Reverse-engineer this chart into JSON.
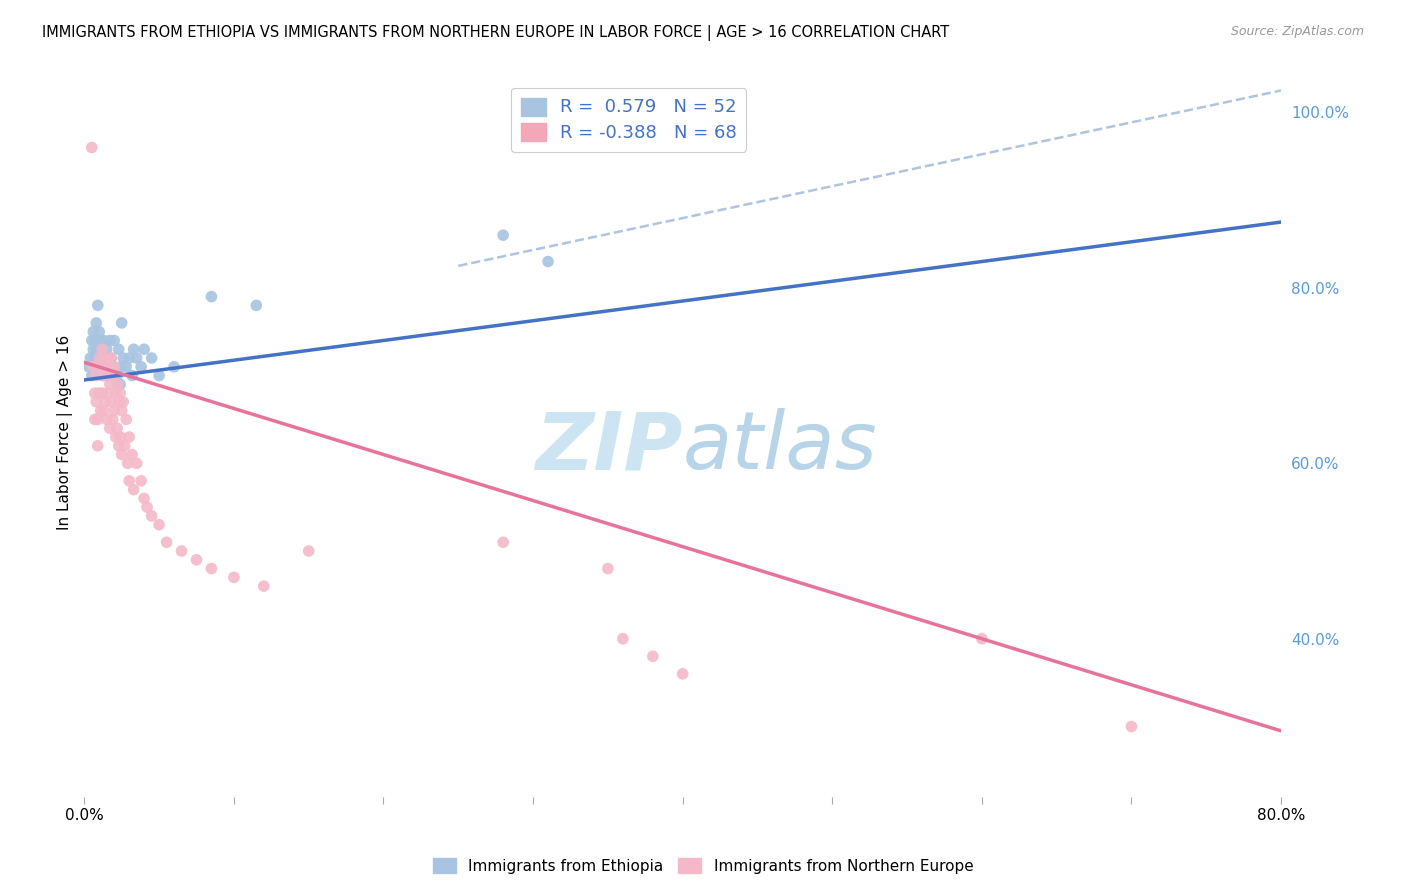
{
  "title": "IMMIGRANTS FROM ETHIOPIA VS IMMIGRANTS FROM NORTHERN EUROPE IN LABOR FORCE | AGE > 16 CORRELATION CHART",
  "source": "Source: ZipAtlas.com",
  "ylabel": "In Labor Force | Age > 16",
  "xlim": [
    0.0,
    0.8
  ],
  "ylim": [
    0.22,
    1.05
  ],
  "right_yticklabels": [
    "100.0%",
    "80.0%",
    "60.0%",
    "40.0%"
  ],
  "right_yticks": [
    1.0,
    0.8,
    0.6,
    0.4
  ],
  "legend_color1": "#a8c4e0",
  "legend_color2": "#f4a7b9",
  "scatter_color_blue": "#a8c4e0",
  "scatter_color_pink": "#f4b8c8",
  "line_color_blue": "#4472c4",
  "line_color_pink": "#e8739a",
  "line_color_dashed": "#b0c4de",
  "watermark_color": "#d8eaf5",
  "ethiopia_trend_x": [
    0.0,
    0.8
  ],
  "ethiopia_trend_y": [
    0.695,
    0.875
  ],
  "northern_trend_x": [
    0.0,
    0.8
  ],
  "northern_trend_y": [
    0.715,
    0.295
  ],
  "dashed_trend_x": [
    0.25,
    0.8
  ],
  "dashed_trend_y": [
    0.825,
    1.025
  ],
  "bottom_legend_labels": [
    "Immigrants from Ethiopia",
    "Immigrants from Northern Europe"
  ],
  "bottom_legend_colors": [
    "#a8c4e0",
    "#f4b8c8"
  ],
  "ethiopia_points": [
    [
      0.003,
      0.71
    ],
    [
      0.004,
      0.72
    ],
    [
      0.005,
      0.7
    ],
    [
      0.005,
      0.74
    ],
    [
      0.006,
      0.73
    ],
    [
      0.006,
      0.75
    ],
    [
      0.007,
      0.72
    ],
    [
      0.007,
      0.74
    ],
    [
      0.008,
      0.71
    ],
    [
      0.008,
      0.73
    ],
    [
      0.008,
      0.76
    ],
    [
      0.009,
      0.72
    ],
    [
      0.009,
      0.74
    ],
    [
      0.009,
      0.78
    ],
    [
      0.01,
      0.71
    ],
    [
      0.01,
      0.73
    ],
    [
      0.01,
      0.75
    ],
    [
      0.011,
      0.72
    ],
    [
      0.011,
      0.74
    ],
    [
      0.012,
      0.7
    ],
    [
      0.012,
      0.73
    ],
    [
      0.013,
      0.71
    ],
    [
      0.013,
      0.74
    ],
    [
      0.014,
      0.72
    ],
    [
      0.015,
      0.7
    ],
    [
      0.015,
      0.73
    ],
    [
      0.016,
      0.71
    ],
    [
      0.017,
      0.74
    ],
    [
      0.018,
      0.72
    ],
    [
      0.019,
      0.7
    ],
    [
      0.02,
      0.71
    ],
    [
      0.02,
      0.74
    ],
    [
      0.022,
      0.7
    ],
    [
      0.023,
      0.73
    ],
    [
      0.024,
      0.69
    ],
    [
      0.025,
      0.71
    ],
    [
      0.025,
      0.76
    ],
    [
      0.026,
      0.72
    ],
    [
      0.028,
      0.71
    ],
    [
      0.03,
      0.72
    ],
    [
      0.032,
      0.7
    ],
    [
      0.033,
      0.73
    ],
    [
      0.035,
      0.72
    ],
    [
      0.038,
      0.71
    ],
    [
      0.04,
      0.73
    ],
    [
      0.045,
      0.72
    ],
    [
      0.05,
      0.7
    ],
    [
      0.06,
      0.71
    ],
    [
      0.085,
      0.79
    ],
    [
      0.115,
      0.78
    ],
    [
      0.28,
      0.86
    ],
    [
      0.31,
      0.83
    ]
  ],
  "northern_europe_points": [
    [
      0.005,
      0.96
    ],
    [
      0.006,
      0.71
    ],
    [
      0.007,
      0.68
    ],
    [
      0.007,
      0.65
    ],
    [
      0.008,
      0.7
    ],
    [
      0.008,
      0.67
    ],
    [
      0.009,
      0.65
    ],
    [
      0.009,
      0.62
    ],
    [
      0.01,
      0.72
    ],
    [
      0.01,
      0.68
    ],
    [
      0.011,
      0.71
    ],
    [
      0.011,
      0.66
    ],
    [
      0.012,
      0.73
    ],
    [
      0.012,
      0.68
    ],
    [
      0.013,
      0.7
    ],
    [
      0.013,
      0.66
    ],
    [
      0.014,
      0.72
    ],
    [
      0.014,
      0.67
    ],
    [
      0.015,
      0.7
    ],
    [
      0.015,
      0.65
    ],
    [
      0.016,
      0.71
    ],
    [
      0.016,
      0.68
    ],
    [
      0.017,
      0.69
    ],
    [
      0.017,
      0.64
    ],
    [
      0.018,
      0.72
    ],
    [
      0.018,
      0.67
    ],
    [
      0.019,
      0.7
    ],
    [
      0.019,
      0.65
    ],
    [
      0.02,
      0.71
    ],
    [
      0.02,
      0.66
    ],
    [
      0.021,
      0.68
    ],
    [
      0.021,
      0.63
    ],
    [
      0.022,
      0.69
    ],
    [
      0.022,
      0.64
    ],
    [
      0.023,
      0.67
    ],
    [
      0.023,
      0.62
    ],
    [
      0.024,
      0.68
    ],
    [
      0.024,
      0.63
    ],
    [
      0.025,
      0.66
    ],
    [
      0.025,
      0.61
    ],
    [
      0.026,
      0.67
    ],
    [
      0.027,
      0.62
    ],
    [
      0.028,
      0.65
    ],
    [
      0.029,
      0.6
    ],
    [
      0.03,
      0.63
    ],
    [
      0.03,
      0.58
    ],
    [
      0.032,
      0.61
    ],
    [
      0.033,
      0.57
    ],
    [
      0.035,
      0.6
    ],
    [
      0.038,
      0.58
    ],
    [
      0.04,
      0.56
    ],
    [
      0.042,
      0.55
    ],
    [
      0.045,
      0.54
    ],
    [
      0.05,
      0.53
    ],
    [
      0.055,
      0.51
    ],
    [
      0.065,
      0.5
    ],
    [
      0.075,
      0.49
    ],
    [
      0.085,
      0.48
    ],
    [
      0.1,
      0.47
    ],
    [
      0.12,
      0.46
    ],
    [
      0.15,
      0.5
    ],
    [
      0.28,
      0.51
    ],
    [
      0.35,
      0.48
    ],
    [
      0.36,
      0.4
    ],
    [
      0.38,
      0.38
    ],
    [
      0.4,
      0.36
    ],
    [
      0.6,
      0.4
    ],
    [
      0.7,
      0.3
    ]
  ]
}
